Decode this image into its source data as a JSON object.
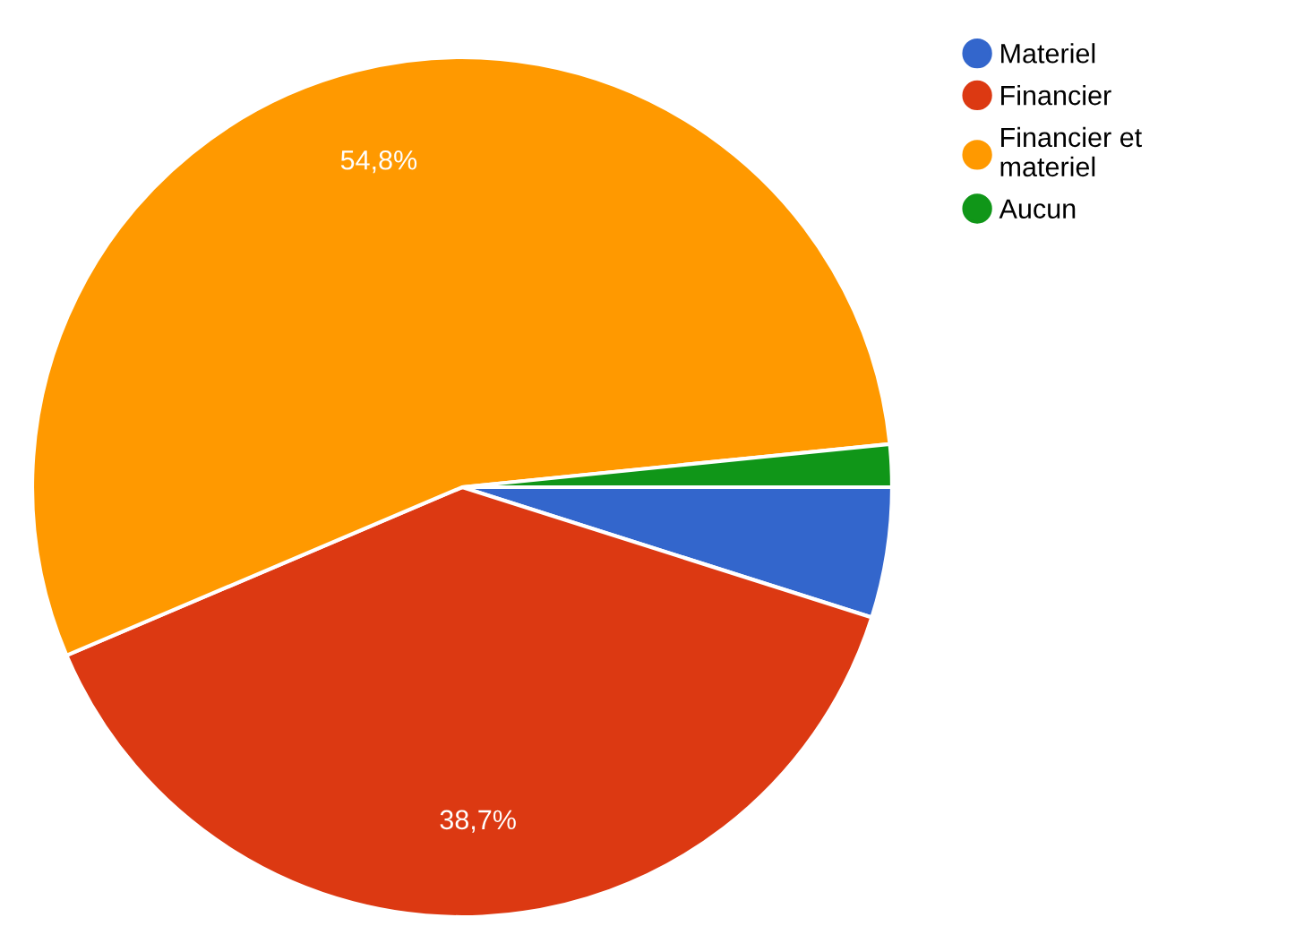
{
  "chart_data": {
    "type": "pie",
    "categories": [
      "Materiel",
      "Financier",
      "Financier et materiel",
      "Aucun"
    ],
    "values": [
      4.9,
      38.7,
      54.8,
      1.6
    ],
    "colors": [
      "#3366cc",
      "#dc3912",
      "#ff9900",
      "#109618"
    ],
    "value_labels": [
      null,
      "38,7%",
      "54,8%",
      null
    ],
    "legend": "top right"
  }
}
